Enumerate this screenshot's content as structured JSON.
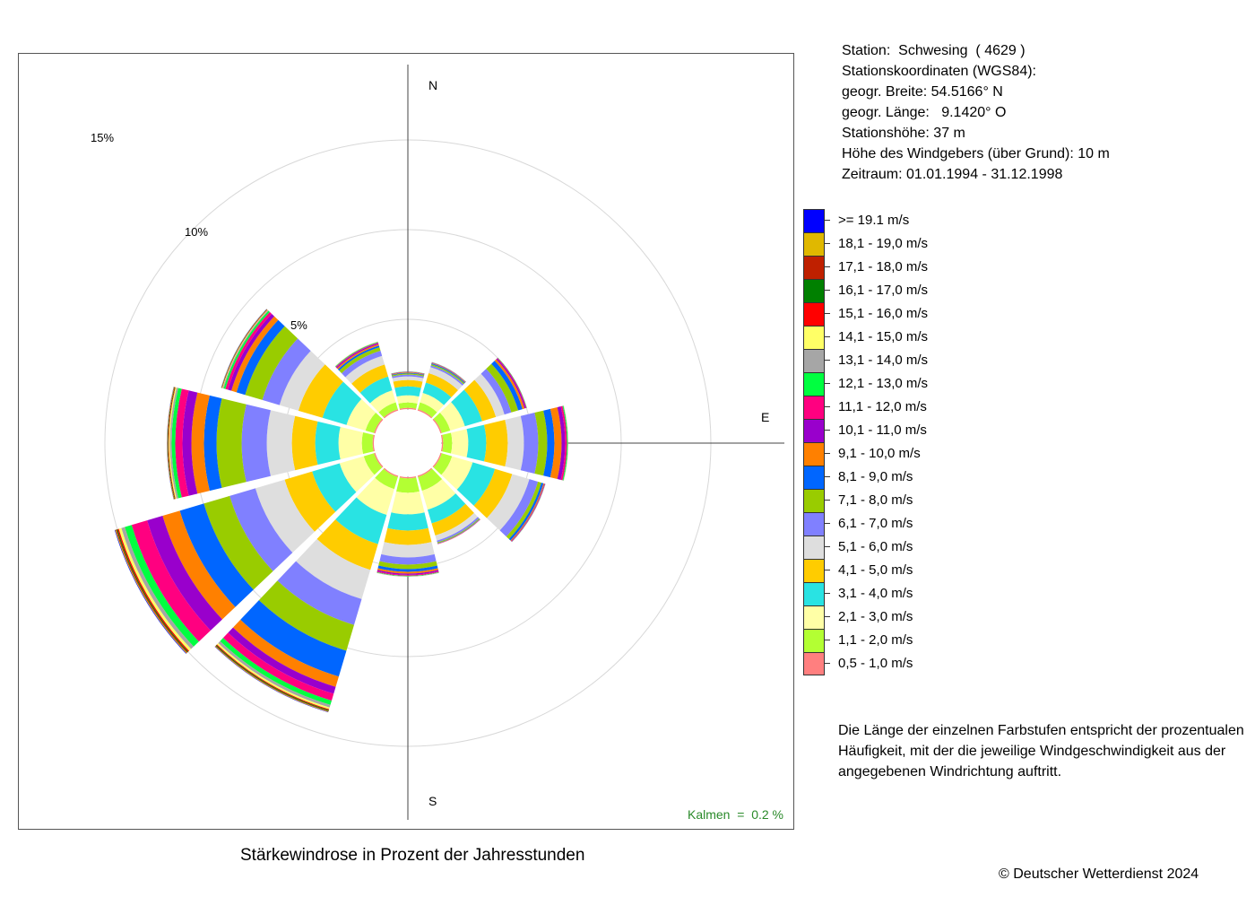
{
  "station_info": [
    "Station:  Schwesing  ( 4629 )",
    "Stationskoordinaten (WGS84):",
    "geogr. Breite: 54.5166° N",
    "geogr. Länge:   9.1420° O",
    "Stationshöhe: 37 m",
    "Höhe des Windgebers (über Grund): 10 m",
    "Zeitraum: 01.01.1994 - 31.12.1998"
  ],
  "caption": "Stärkewindrose in Prozent der Jahresstunden",
  "copyright": "© Deutscher Wetterdienst  2024",
  "note": "Die Länge der einzelnen Farbstufen entspricht der prozentualen Häufigkeit, mit der die jeweilige Windgeschwindigkeit aus der angegebenen Windrichtung auftritt.",
  "kalmen": "Kalmen  =  0.2 %",
  "chart_data": {
    "type": "stacked-polar-bar",
    "title": "Stärkewindrose in Prozent der Jahresstunden",
    "unit": "%",
    "direction_labels": {
      "N": "N",
      "E": "E",
      "S": "S"
    },
    "ring_labels": [
      "5%",
      "10%",
      "15%"
    ],
    "rings": [
      5,
      10,
      15
    ],
    "calm_percent": 0.2,
    "directions_deg": [
      0,
      30,
      60,
      90,
      120,
      150,
      180,
      210,
      240,
      270,
      300,
      330
    ],
    "classes": [
      {
        "label": "0,5 - 1,0 m/s",
        "color": "#ff7f7f"
      },
      {
        "label": "1,1 - 2,0 m/s",
        "color": "#b3ff33"
      },
      {
        "label": "2,1 - 3,0 m/s",
        "color": "#ffffa6"
      },
      {
        "label": "3,1 - 4,0 m/s",
        "color": "#29e3e3"
      },
      {
        "label": "4,1 - 5,0 m/s",
        "color": "#ffcc00"
      },
      {
        "label": "5,1 - 6,0 m/s",
        "color": "#dedede"
      },
      {
        "label": "6,1 - 7,0 m/s",
        "color": "#8080ff"
      },
      {
        "label": "7,1 - 8,0 m/s",
        "color": "#99cc00"
      },
      {
        "label": "8,1 - 9,0 m/s",
        "color": "#0066ff"
      },
      {
        "label": "9,1 - 10,0 m/s",
        "color": "#ff8000"
      },
      {
        "label": "10,1 - 11,0 m/s",
        "color": "#9900cc"
      },
      {
        "label": "11,1 - 12,0 m/s",
        "color": "#ff0080"
      },
      {
        "label": "12,1 - 13,0 m/s",
        "color": "#00ff40"
      },
      {
        "label": "13,1 - 14,0 m/s",
        "color": "#a6a6a6"
      },
      {
        "label": "14,1 - 15,0 m/s",
        "color": "#ffff66"
      },
      {
        "label": "15,1 - 16,0 m/s",
        "color": "#ff0000"
      },
      {
        "label": "16,1 - 17,0 m/s",
        "color": "#008000"
      },
      {
        "label": "17,1 - 18,0 m/s",
        "color": "#bf2000"
      },
      {
        "label": "18,1 - 19,0 m/s",
        "color": "#e0b800"
      },
      {
        "label": ">= 19.1 m/s",
        "color": "#0000ff"
      }
    ],
    "values": [
      [
        0.07,
        0.3,
        0.4,
        0.5,
        0.35,
        0.2,
        0.1,
        0.06,
        0.04,
        0.03,
        0.02,
        0.01,
        0.01,
        0,
        0,
        0,
        0,
        0,
        0,
        0
      ],
      [
        0.07,
        0.4,
        0.55,
        0.6,
        0.55,
        0.35,
        0.1,
        0.07,
        0.05,
        0.03,
        0.02,
        0.01,
        0.01,
        0.01,
        0,
        0,
        0,
        0,
        0,
        0
      ],
      [
        0.07,
        0.5,
        0.85,
        1.0,
        0.8,
        0.5,
        0.4,
        0.4,
        0.25,
        0.12,
        0.07,
        0.04,
        0.02,
        0.01,
        0,
        0,
        0,
        0,
        0,
        0
      ],
      [
        0.07,
        0.5,
        0.9,
        1.0,
        1.2,
        0.9,
        0.8,
        0.5,
        0.4,
        0.4,
        0.2,
        0.1,
        0.05,
        0.02,
        0.01,
        0,
        0,
        0,
        0,
        0
      ],
      [
        0.07,
        0.6,
        1.2,
        1.3,
        1.0,
        1.0,
        0.5,
        0.2,
        0.12,
        0.05,
        0.03,
        0.02,
        0.01,
        0.01,
        0,
        0,
        0,
        0,
        0,
        0
      ],
      [
        0.07,
        0.8,
        1.1,
        0.8,
        0.7,
        0.3,
        0.1,
        0.05,
        0.02,
        0.02,
        0.01,
        0.01,
        0,
        0,
        0,
        0,
        0,
        0,
        0,
        0
      ],
      [
        0.07,
        0.8,
        1.2,
        0.9,
        0.8,
        0.7,
        0.4,
        0.25,
        0.15,
        0.1,
        0.07,
        0.05,
        0.03,
        0.02,
        0.01,
        0,
        0,
        0,
        0,
        0
      ],
      [
        0.07,
        0.7,
        1.5,
        1.7,
        1.5,
        1.7,
        1.5,
        1.5,
        1.5,
        0.6,
        0.4,
        0.4,
        0.25,
        0.15,
        0.1,
        0.05,
        0.05,
        0.03,
        0.03,
        0.02
      ],
      [
        0.07,
        0.6,
        1.4,
        1.6,
        1.6,
        1.7,
        1.5,
        1.5,
        1.4,
        1.0,
        0.9,
        0.9,
        0.4,
        0.2,
        0.15,
        0.07,
        0.05,
        0.05,
        0.04,
        0.03
      ],
      [
        0.07,
        0.6,
        1.3,
        1.3,
        1.3,
        1.4,
        1.4,
        1.4,
        0.7,
        0.7,
        0.5,
        0.4,
        0.2,
        0.1,
        0.06,
        0.03,
        0.03,
        0.02,
        0.02,
        0.01
      ],
      [
        0.07,
        0.5,
        1.1,
        1.4,
        1.4,
        1.1,
        1.0,
        1.0,
        0.5,
        0.3,
        0.2,
        0.15,
        0.1,
        0.05,
        0.03,
        0.02,
        0.02,
        0.01,
        0.01,
        0.01
      ],
      [
        0.07,
        0.4,
        0.7,
        0.8,
        0.7,
        0.5,
        0.3,
        0.2,
        0.1,
        0.08,
        0.06,
        0.04,
        0.03,
        0.02,
        0.01,
        0,
        0,
        0,
        0,
        0
      ]
    ]
  }
}
